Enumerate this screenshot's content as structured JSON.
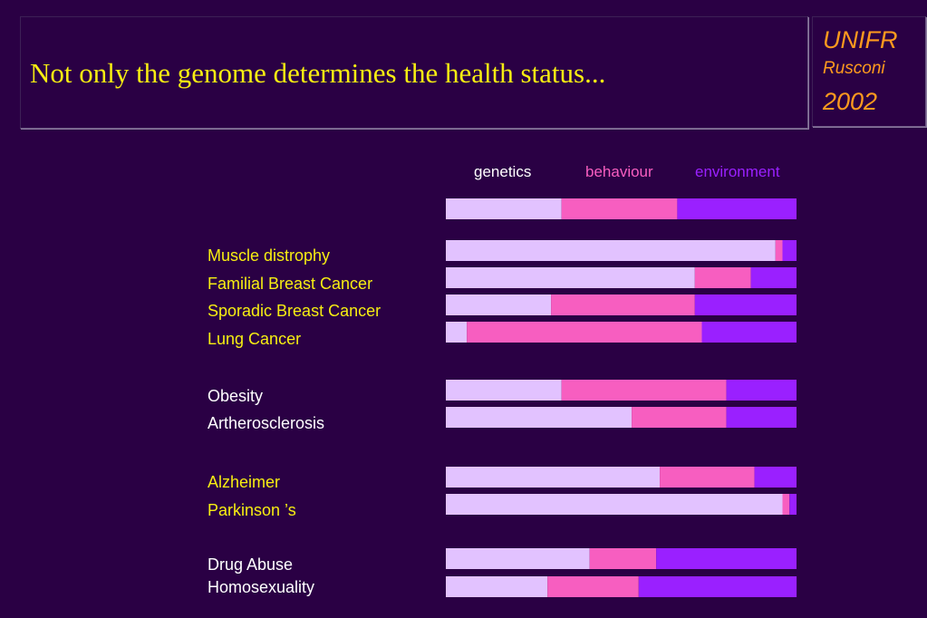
{
  "title": "Not only the  genome determines the health status...",
  "badge": {
    "line1": "UNIFR",
    "line2": "Rusconi",
    "line3": "2002"
  },
  "colors": {
    "genetics": "#e2c2ff",
    "behaviour": "#f75ec0",
    "environment": "#9a20ff",
    "background": "#2a0044",
    "title": "#f7ee12",
    "badge": "#ff9a1e",
    "label_yellow": "#f7ee12",
    "label_white": "#ffffff"
  },
  "chart_data": {
    "type": "bar",
    "orientation": "horizontal",
    "stacked": true,
    "legend": [
      "genetics",
      "behaviour",
      "environment"
    ],
    "categories": [
      "",
      "Muscle distrophy",
      "Familial Breast Cancer",
      "Sporadic Breast Cancer",
      "Lung Cancer",
      "Obesity",
      "Artherosclerosis",
      "Alzheimer",
      "Parkinson ’s",
      "Drug Abuse",
      "Homosexuality"
    ],
    "category_colors": [
      "",
      "yellow",
      "yellow",
      "yellow",
      "yellow",
      "white",
      "white",
      "yellow",
      "yellow",
      "white",
      "white"
    ],
    "series": [
      {
        "name": "genetics",
        "values": [
          33,
          94,
          71,
          30,
          6,
          33,
          53,
          61,
          96,
          41,
          29
        ]
      },
      {
        "name": "behaviour",
        "values": [
          33,
          2,
          16,
          41,
          67,
          47,
          27,
          27,
          2,
          19,
          26
        ]
      },
      {
        "name": "environment",
        "values": [
          34,
          4,
          13,
          29,
          27,
          20,
          20,
          12,
          2,
          40,
          45
        ]
      }
    ],
    "xlim": [
      0,
      100
    ]
  }
}
